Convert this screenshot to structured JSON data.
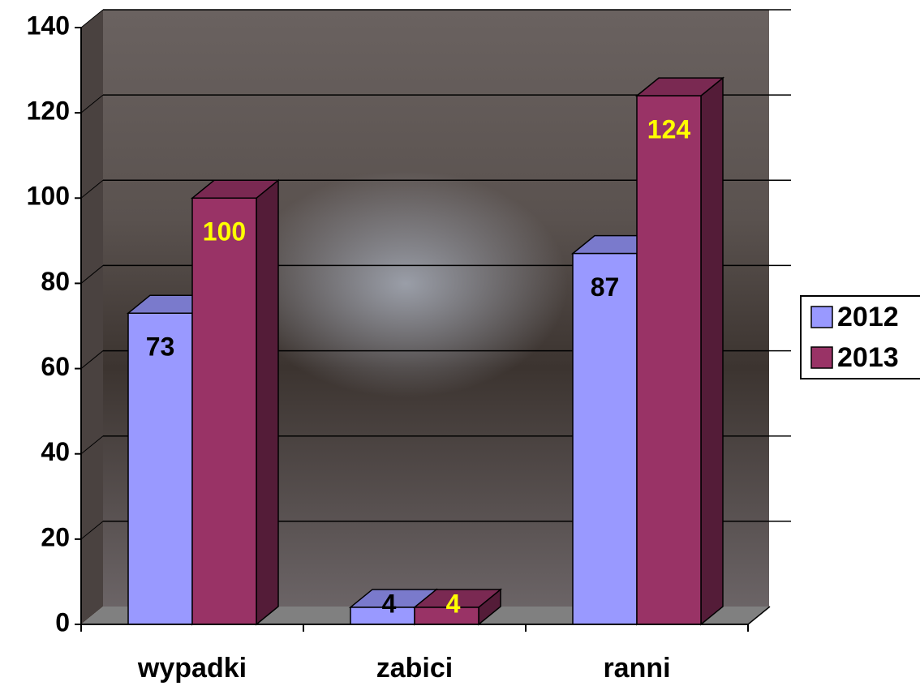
{
  "chart_data": {
    "type": "bar",
    "categories": [
      "wypadki",
      "zabici",
      "ranni"
    ],
    "series": [
      {
        "name": "2012",
        "color": "#9999ff",
        "values": [
          73,
          4,
          87
        ]
      },
      {
        "name": "2013",
        "color": "#993366",
        "values": [
          100,
          4,
          124
        ]
      }
    ],
    "ylim": [
      0,
      140
    ],
    "yticks": [
      0,
      20,
      40,
      60,
      80,
      100,
      120,
      140
    ],
    "grid": true,
    "legend": "right"
  }
}
